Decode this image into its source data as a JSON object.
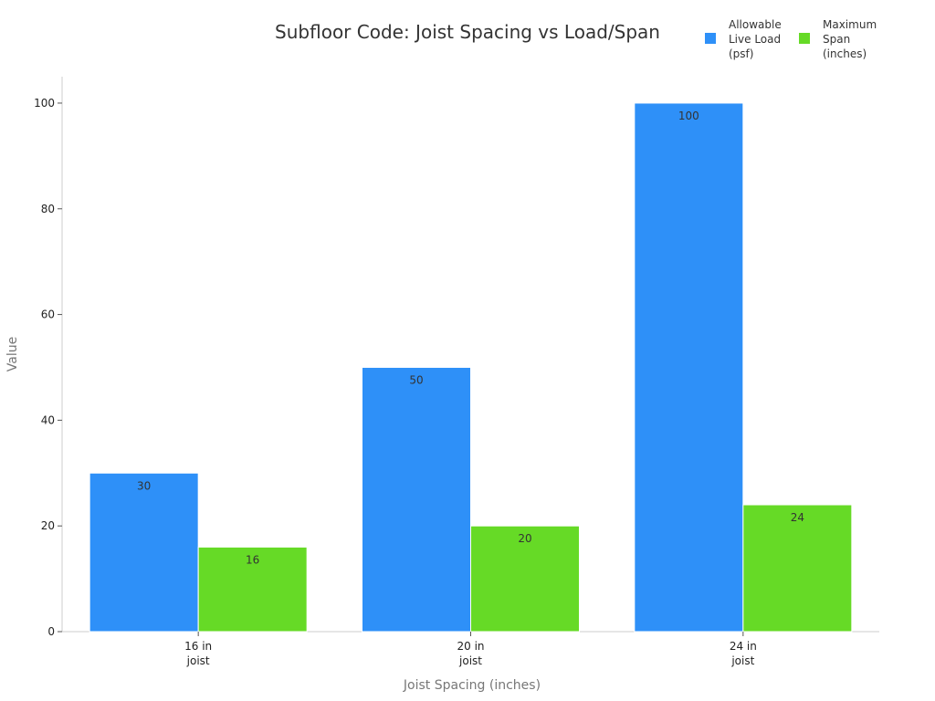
{
  "chart_data": {
    "type": "bar",
    "title": "Subfloor Code: Joist Spacing vs Load/Span",
    "xlabel": "Joist Spacing (inches)",
    "ylabel": "Value",
    "categories": [
      [
        "16 in",
        "joist"
      ],
      [
        "20 in",
        "joist"
      ],
      [
        "24 in",
        "joist"
      ]
    ],
    "series": [
      {
        "name": [
          "Allowable",
          "Live Load",
          "(psf)"
        ],
        "values": [
          30,
          50,
          100
        ],
        "color": "#2e90f8"
      },
      {
        "name": [
          "Maximum",
          "Span",
          "(inches)"
        ],
        "values": [
          16,
          20,
          24
        ],
        "color": "#66da26"
      }
    ],
    "ylim": [
      0,
      105
    ],
    "yticks": [
      0,
      20,
      40,
      60,
      80,
      100
    ],
    "grid": false,
    "legend": "top-right"
  }
}
